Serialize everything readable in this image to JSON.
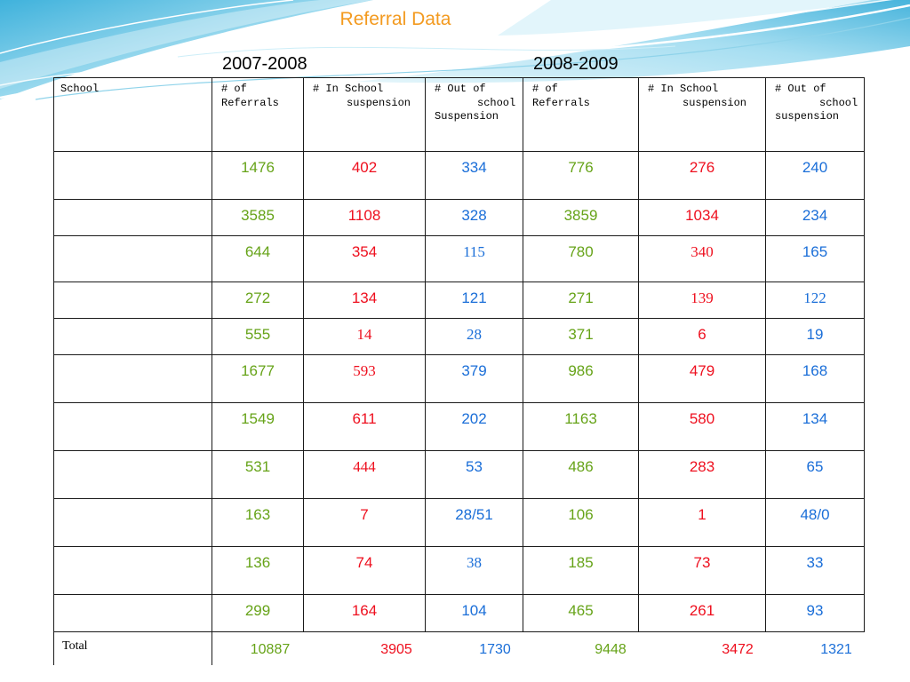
{
  "title": "Referral Data",
  "years": {
    "first": "2007-2008",
    "second": "2008-2009"
  },
  "colors": {
    "title": "#f39a1f",
    "referrals": "#66a318",
    "in_school": "#ee0f1e",
    "out_of_school": "#1a6ed8"
  },
  "table": {
    "headers": [
      [
        "School"
      ],
      [
        "# of",
        "Referrals"
      ],
      [
        "# In School",
        "suspension"
      ],
      [
        "# Out of",
        "school",
        "Suspension"
      ],
      [
        "# of",
        "Referrals"
      ],
      [
        "# In School",
        "suspension"
      ],
      [
        "# Out of",
        "school",
        "suspension"
      ]
    ],
    "rows": [
      [
        "1476",
        "402",
        "334",
        "776",
        "276",
        "240"
      ],
      [
        "3585",
        "1108",
        "328",
        "3859",
        "1034",
        "234"
      ],
      [
        "644",
        "354",
        "115",
        "780",
        "340",
        "165"
      ],
      [
        "272",
        "134",
        "121",
        "271",
        "139",
        "122"
      ],
      [
        "555",
        "14",
        "28",
        "371",
        "6",
        "19"
      ],
      [
        "1677",
        "593",
        "379",
        "986",
        "479",
        "168"
      ],
      [
        "1549",
        "611",
        "202",
        "1163",
        "580",
        "134"
      ],
      [
        "531",
        "444",
        "53",
        "486",
        "283",
        "65"
      ],
      [
        "163",
        "7",
        "28/51",
        "106",
        "1",
        "48/0"
      ],
      [
        "136",
        "74",
        "38",
        "185",
        "73",
        "33"
      ],
      [
        "299",
        "164",
        "104",
        "465",
        "261",
        "93"
      ]
    ],
    "total": {
      "label": "Total",
      "values": [
        "10887",
        "3905",
        "1730",
        "9448",
        "3472",
        "1321"
      ]
    }
  }
}
